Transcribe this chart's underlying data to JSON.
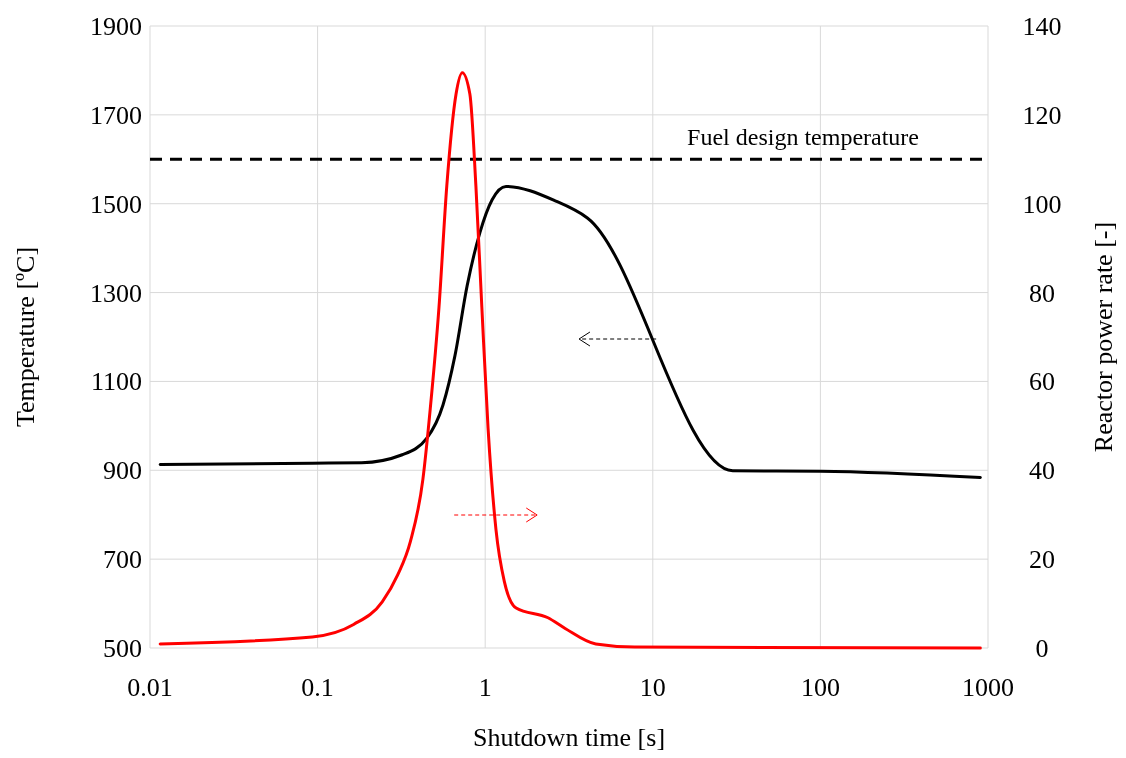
{
  "chart_data": {
    "type": "line",
    "xlabel": "Shutdown time [s]",
    "ylabel": "Temperature [ºC]",
    "y2label": "Reactor power rate [-]",
    "log": "x",
    "grid": true,
    "line_style": "solid",
    "marker": "none",
    "xlim": [
      0.01,
      1000
    ],
    "xticks": [
      0.01,
      0.1,
      1,
      10,
      100,
      1000
    ],
    "ylim": [
      500,
      1900
    ],
    "yticks": [
      500,
      700,
      900,
      1100,
      1300,
      1500,
      1700,
      1900
    ],
    "y2lim": [
      0,
      140
    ],
    "y2ticks": [
      0,
      20,
      40,
      60,
      80,
      100,
      120,
      140
    ],
    "series": [
      {
        "color": "#000000",
        "x": [
          0.0115,
          0.093,
          0.183,
          0.32,
          0.45,
          0.56,
          0.66,
          0.78,
          0.93,
          1.1,
          1.33,
          2.6,
          4.07,
          30,
          100,
          900
        ],
        "values": [
          913,
          916,
          917,
          935,
          973,
          1047,
          1158,
          1315,
          1435,
          1509,
          1539,
          1507,
          1468,
          899,
          898,
          884
        ]
      },
      {
        "color": "#ff0000",
        "axis": "y2",
        "x": [
          0.0115,
          0.093,
          0.164,
          0.243,
          0.3,
          0.358,
          0.425,
          0.47,
          0.53,
          0.59,
          0.67,
          0.73,
          0.81,
          0.88,
          0.955,
          1.04,
          1.16,
          1.3,
          1.53,
          2.37,
          3,
          4.57,
          7.8,
          900
        ],
        "values": [
          0.9,
          2.5,
          5.3,
          10.4,
          16.4,
          24,
          38,
          53.8,
          76.7,
          104,
          124.7,
          129.5,
          124.7,
          104,
          76.7,
          49.5,
          26.6,
          15,
          9,
          6.8,
          4.4,
          0.9,
          0.2,
          0
        ]
      }
    ],
    "ref_lines": [
      {
        "axis": "y",
        "value": 1600,
        "label": "Fuel design temperature",
        "color": "#000000",
        "line_style": "dashed"
      }
    ]
  }
}
